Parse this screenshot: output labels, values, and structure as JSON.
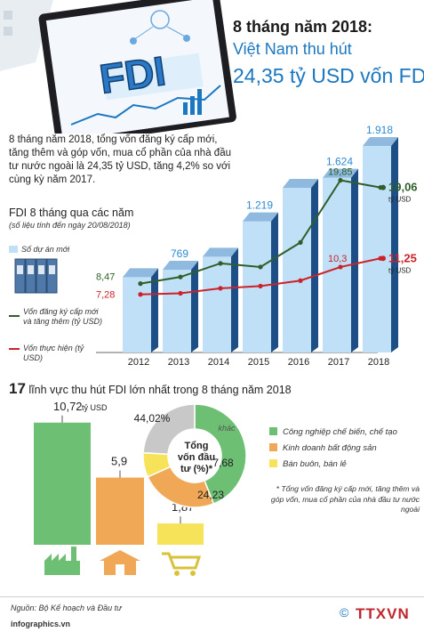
{
  "header": {
    "line1": "8 tháng năm 2018:",
    "line2": "Việt Nam thu hút",
    "line3": "24,35 tỷ USD vốn FDI",
    "hero_word": "FDI"
  },
  "intro": "8 tháng năm 2018, tổng vốn đăng ký cấp mới, tăng thêm và góp vốn, mua cổ phần của nhà đầu tư nước ngoài là 24,35 tỷ USD, tăng 4,2% so với cùng kỳ năm 2017.",
  "section1": {
    "title": "FDI 8 tháng qua các năm",
    "subtitle": "(số liệu tính đến ngày 20/08/2018)",
    "legend_projects": "Số dự án mới",
    "legend_registered": "Vốn đăng ký cấp mới và tăng thêm (tỷ USD)",
    "legend_disbursed": "Vốn thực hiện (tỷ USD)"
  },
  "section2": {
    "title_number": "17",
    "title_text": " lĩnh vực thu hút FDI lớn nhất trong 8 tháng năm 2018",
    "pie_center": "Tổng vốn đầu tư (%)*",
    "legend": [
      "Công nghiệp chế biến, chế tạo",
      "Kinh doanh bất động sản",
      "Bán buôn, bán lẻ"
    ],
    "note": "* Tổng vốn đăng ký cấp mới, tăng thêm và góp vốn, mua cổ phần của nhà đầu tư nước ngoài"
  },
  "footer": {
    "source": "Nguồn: Bộ Kế hoạch và Đầu tư",
    "site": "infographics.vn",
    "logo": "TTXVN",
    "copyright": "©"
  },
  "colors": {
    "bar_front": "#bfe0f6",
    "bar_side": "#1d4f86",
    "line_registered": "#2f5e2a",
    "line_disbursed": "#cc2229",
    "green": "#6dbf73",
    "orange": "#f0a857",
    "yellow": "#f6e35a",
    "grey": "#c8c8c8",
    "blue_text": "#1b77c0"
  },
  "chart_data": [
    {
      "type": "bar",
      "title": "FDI 8 tháng qua các năm",
      "categories": [
        "2012",
        "2013",
        "2014",
        "2015",
        "2016",
        "2017",
        "2018"
      ],
      "series": [
        {
          "name": "Số dự án mới",
          "values": [
            700,
            769,
            890,
            1219,
            1530,
            1624,
            1918
          ],
          "labels": [
            "",
            "769",
            "",
            "1.219",
            "",
            "1.624",
            "1.918"
          ]
        },
        {
          "name": "Vốn đăng ký cấp mới và tăng thêm (tỷ USD)",
          "type": "line",
          "values": [
            8.47,
            9.2,
            10.7,
            10.3,
            13.0,
            19.85,
            19.06
          ],
          "labels": [
            "8,47",
            "",
            "",
            "",
            "",
            "19,85",
            "19,06"
          ],
          "unit": "tỷ USD"
        },
        {
          "name": "Vốn thực hiện (tỷ USD)",
          "type": "line",
          "values": [
            7.28,
            7.4,
            7.95,
            8.2,
            8.8,
            10.3,
            11.25
          ],
          "labels": [
            "7,28",
            "",
            "",
            "",
            "",
            "10,3",
            "11,25"
          ],
          "unit": "tỷ USD"
        }
      ]
    },
    {
      "type": "bar",
      "title": "17 lĩnh vực thu hút FDI lớn nhất trong 8 tháng năm 2018",
      "categories": [
        "Công nghiệp chế biến, chế tạo",
        "Kinh doanh bất động sản",
        "Bán buôn, bán lẻ"
      ],
      "values": [
        10.72,
        5.9,
        1.87
      ],
      "labels": [
        "10,72",
        "5,9",
        "1,87"
      ],
      "unit": "tỷ USD"
    },
    {
      "type": "pie",
      "title": "Tổng vốn đầu tư (%)*",
      "categories": [
        "Công nghiệp chế biến, chế tạo",
        "Kinh doanh bất động sản",
        "Bán buôn, bán lẻ",
        "khác"
      ],
      "values": [
        44.02,
        24.23,
        7.68,
        24.07
      ],
      "labels": [
        "44,02%",
        "24,23",
        "7,68",
        "khác"
      ]
    }
  ]
}
